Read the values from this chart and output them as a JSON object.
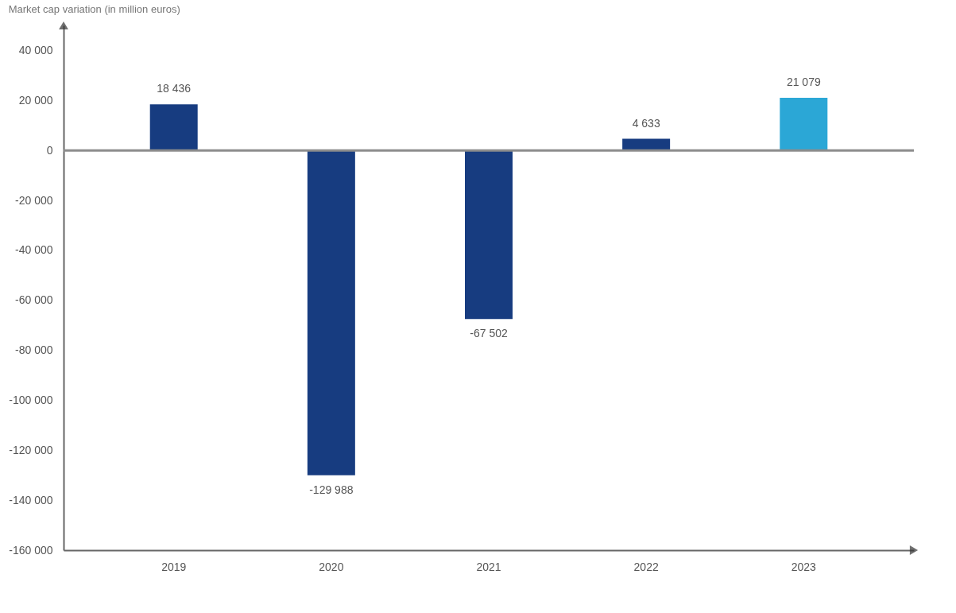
{
  "chart_data": {
    "type": "bar",
    "title": "Market cap variation (in million euros)",
    "categories": [
      "2019",
      "2020",
      "2021",
      "2022",
      "2023"
    ],
    "values": [
      18436,
      -129988,
      -67502,
      4633,
      21079
    ],
    "colors": [
      "#173c80",
      "#173c80",
      "#173c80",
      "#173c80",
      "#2ba7d6"
    ],
    "value_labels": [
      "18 436",
      "-129 988",
      "-67 502",
      "4 633",
      "21 079"
    ],
    "ylim": [
      -160000,
      50000
    ],
    "yticks": [
      {
        "value": 40000,
        "label": "40 000"
      },
      {
        "value": 20000,
        "label": "20 000"
      },
      0,
      {
        "value": -20000,
        "label": "-20 000"
      },
      {
        "value": -40000,
        "label": "-40 000"
      },
      {
        "value": -60000,
        "label": "-60 000"
      },
      {
        "value": -80000,
        "label": "-80 000"
      },
      {
        "value": -100000,
        "label": "-100 000"
      },
      {
        "value": -120000,
        "label": "-120 000"
      },
      {
        "value": -140000,
        "label": "-140 000"
      },
      {
        "value": -160000,
        "label": "-160 000"
      }
    ],
    "ref_lines": [
      {
        "axis": "y",
        "value": 0,
        "label": null,
        "color": "#8c8c8c"
      }
    ],
    "grid": false
  }
}
